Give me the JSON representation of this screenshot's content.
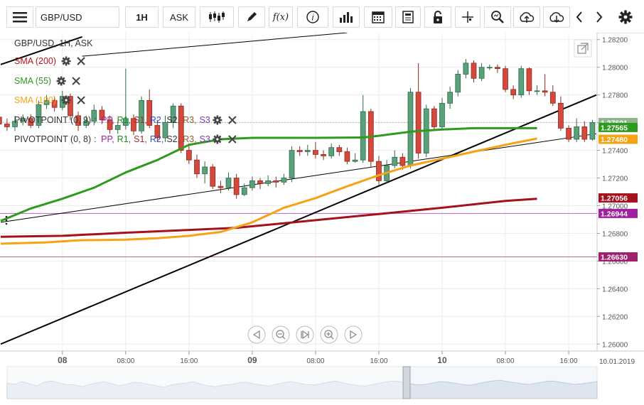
{
  "toolbar": {
    "menu_icon": "hamburger-icon",
    "symbol": "GBP/USD",
    "timeframe": "1H",
    "price_side": "ASK",
    "function_label": "f(x)",
    "info_label": "i"
  },
  "chart_data": {
    "type": "candlestick",
    "title": "GBP/USD, 1H, ASK",
    "symbol": "GBP/USD",
    "timeframe": "1H",
    "price_side": "ASK",
    "ylim": [
      1.2595,
      1.2825
    ],
    "y_ticks": [
      "1.28200",
      "1.28000",
      "1.27800",
      "1.27600",
      "1.27400",
      "1.27200",
      "1.27000",
      "1.26800",
      "1.26600",
      "1.26400",
      "1.26200",
      "1.26000"
    ],
    "x_ticks": [
      {
        "t": 8,
        "label": "08",
        "bold": true
      },
      {
        "t": 16,
        "label": "08:00",
        "bold": false
      },
      {
        "t": 24,
        "label": "16:00",
        "bold": false
      },
      {
        "t": 32,
        "label": "09",
        "bold": true
      },
      {
        "t": 40,
        "label": "08:00",
        "bold": false
      },
      {
        "t": 48,
        "label": "16:00",
        "bold": false
      },
      {
        "t": 56,
        "label": "10",
        "bold": true
      },
      {
        "t": 64,
        "label": "08:00",
        "bold": false
      },
      {
        "t": 72,
        "label": "16:00",
        "bold": false
      }
    ],
    "x_range": [
      0.2,
      75.5
    ],
    "date_label": "10.01.2019",
    "indicator_labels": [
      {
        "text": "SMA (200)",
        "color": "#b3151f"
      },
      {
        "text": "SMA (55)",
        "color": "#2e9a1e"
      },
      {
        "text": "SMA (100)",
        "color": "#f5a314"
      }
    ],
    "pivot_rows": [
      {
        "name": "PIVOTPOINT (0, 9)",
        "levels": [
          "PP",
          "R1",
          "S1",
          "R2",
          "S2",
          "R3",
          "S3"
        ]
      },
      {
        "name": "PIVOTPOINT (0, 8)",
        "levels": [
          "PP",
          "R1",
          "S1",
          "R2",
          "S2",
          "R3",
          "S3"
        ]
      }
    ],
    "pivot_colors": {
      "PP": "#a020a0",
      "R1": "#1e8c1e",
      "S1": "#a52a2a",
      "R2": "#3050c0",
      "S2": "#333333",
      "R3": "#8b5a2b",
      "S3": "#7a3ab0"
    },
    "series": [
      {
        "name": "SMA (200)",
        "color": "#a5111c",
        "width": 3,
        "points": [
          [
            0.2,
            1.26775
          ],
          [
            8,
            1.26782
          ],
          [
            16,
            1.26805
          ],
          [
            24,
            1.26825
          ],
          [
            30,
            1.2684
          ],
          [
            40,
            1.26895
          ],
          [
            48,
            1.2694
          ],
          [
            56,
            1.26985
          ],
          [
            64,
            1.27035
          ],
          [
            68,
            1.2705
          ]
        ]
      },
      {
        "name": "SMA (55)",
        "color": "#2e9a1e",
        "width": 3,
        "points": [
          [
            0.2,
            1.2689
          ],
          [
            4,
            1.2698
          ],
          [
            8,
            1.2705
          ],
          [
            12,
            1.2713
          ],
          [
            16,
            1.2724
          ],
          [
            20,
            1.2733
          ],
          [
            24,
            1.2744
          ],
          [
            28,
            1.2748
          ],
          [
            32,
            1.2749
          ],
          [
            40,
            1.2749
          ],
          [
            46,
            1.27493
          ],
          [
            48,
            1.27505
          ],
          [
            52,
            1.27535
          ],
          [
            56,
            1.2755
          ],
          [
            60,
            1.2756
          ],
          [
            64,
            1.2756
          ],
          [
            68,
            1.2756
          ]
        ]
      },
      {
        "name": "SMA (100)",
        "color": "#f5a314",
        "width": 3,
        "points": [
          [
            0.2,
            1.26725
          ],
          [
            6,
            1.26735
          ],
          [
            10,
            1.2675
          ],
          [
            16,
            1.26755
          ],
          [
            20,
            1.26765
          ],
          [
            24,
            1.26782
          ],
          [
            28,
            1.2681
          ],
          [
            32,
            1.2688
          ],
          [
            36,
            1.26985
          ],
          [
            40,
            1.27055
          ],
          [
            44,
            1.2714
          ],
          [
            48,
            1.2722
          ],
          [
            52,
            1.2729
          ],
          [
            56,
            1.2734
          ],
          [
            60,
            1.2739
          ],
          [
            64,
            1.2744
          ],
          [
            68,
            1.27485
          ]
        ]
      }
    ],
    "trend_lines": [
      {
        "color": "#000000",
        "width": 2,
        "points": [
          [
            0.2,
            1.26
          ],
          [
            75.5,
            1.278
          ]
        ]
      },
      {
        "color": "#000000",
        "width": 1,
        "points": [
          [
            0.2,
            1.2688
          ],
          [
            75.5,
            1.2752
          ]
        ]
      },
      {
        "color": "#000000",
        "width": 2,
        "points": [
          [
            0.2,
            1.2802
          ],
          [
            10.5,
            1.2822
          ]
        ]
      },
      {
        "color": "#000000",
        "width": 1,
        "points": [
          [
            10.5,
            1.2808
          ],
          [
            44,
            1.2825
          ]
        ]
      }
    ],
    "horizontal_levels": [
      {
        "value": 1.26944,
        "color": "#c060d0"
      },
      {
        "value": 1.2663,
        "color": "#c060a0"
      },
      {
        "value": 1.27601,
        "color": "#b8b8b8",
        "dashed": true
      }
    ],
    "price_badges": [
      {
        "value": 1.27601,
        "label": "1.27601",
        "color": "#8fb58f"
      },
      {
        "value": 1.27565,
        "label": "1.27565",
        "color": "#2e9a1e"
      },
      {
        "value": 1.2748,
        "label": "1.27480",
        "color": "#f5a314"
      },
      {
        "value": 1.27056,
        "label": "1.27056",
        "color": "#a5111c"
      },
      {
        "value": 1.26944,
        "label": "1.26944",
        "color": "#a020a0"
      },
      {
        "value": 1.2663,
        "label": "1.26630",
        "color": "#a0206e"
      }
    ],
    "candles": [
      [
        0,
        1.2764,
        1.2759,
        1.2767,
        1.2755
      ],
      [
        1,
        1.2759,
        1.2757,
        1.2763,
        1.2754
      ],
      [
        2,
        1.2757,
        1.2761,
        1.2765,
        1.2754
      ],
      [
        3,
        1.2761,
        1.2763,
        1.2766,
        1.2758
      ],
      [
        4,
        1.2763,
        1.2758,
        1.2766,
        1.2756
      ],
      [
        5,
        1.2758,
        1.2773,
        1.2776,
        1.2756
      ],
      [
        6,
        1.2773,
        1.2776,
        1.278,
        1.277
      ],
      [
        7,
        1.2776,
        1.2771,
        1.2779,
        1.2768
      ],
      [
        8,
        1.2771,
        1.2779,
        1.2783,
        1.2769
      ],
      [
        9,
        1.2779,
        1.2765,
        1.2781,
        1.2762
      ],
      [
        10,
        1.2765,
        1.2758,
        1.2768,
        1.2754
      ],
      [
        11,
        1.2758,
        1.2761,
        1.2765,
        1.2756
      ],
      [
        12,
        1.2761,
        1.2769,
        1.2773,
        1.2758
      ],
      [
        13,
        1.2769,
        1.2762,
        1.2772,
        1.2759
      ],
      [
        14,
        1.2762,
        1.2755,
        1.2765,
        1.2752
      ],
      [
        15,
        1.2755,
        1.2758,
        1.2761,
        1.2752
      ],
      [
        16,
        1.2758,
        1.2763,
        1.2799,
        1.2755
      ],
      [
        17,
        1.2763,
        1.2754,
        1.2766,
        1.2751
      ],
      [
        18,
        1.2754,
        1.2776,
        1.2779,
        1.2752
      ],
      [
        19,
        1.2776,
        1.2758,
        1.2784,
        1.2756
      ],
      [
        20,
        1.2758,
        1.2749,
        1.2762,
        1.2746
      ],
      [
        21,
        1.2749,
        1.276,
        1.2765,
        1.2746
      ],
      [
        22,
        1.276,
        1.2772,
        1.2774,
        1.2756
      ],
      [
        23,
        1.2772,
        1.274,
        1.2774,
        1.2738
      ],
      [
        24,
        1.274,
        1.2733,
        1.2745,
        1.273
      ],
      [
        25,
        1.2733,
        1.2723,
        1.2737,
        1.272
      ],
      [
        26,
        1.2723,
        1.2728,
        1.2732,
        1.2716
      ],
      [
        27,
        1.2728,
        1.2714,
        1.273,
        1.2712
      ],
      [
        28,
        1.2714,
        1.2713,
        1.2718,
        1.2709
      ],
      [
        29,
        1.2713,
        1.272,
        1.2724,
        1.2711
      ],
      [
        30,
        1.272,
        1.2708,
        1.2723,
        1.2705
      ],
      [
        31,
        1.2708,
        1.2713,
        1.2716,
        1.2707
      ],
      [
        32,
        1.2713,
        1.2718,
        1.2721,
        1.2711
      ],
      [
        33,
        1.2718,
        1.2716,
        1.272,
        1.2712
      ],
      [
        34,
        1.2716,
        1.2718,
        1.2722,
        1.2714
      ],
      [
        35,
        1.2718,
        1.2717,
        1.2721,
        1.2713
      ],
      [
        36,
        1.2717,
        1.272,
        1.2723,
        1.2715
      ],
      [
        37,
        1.272,
        1.274,
        1.2743,
        1.2717
      ],
      [
        38,
        1.274,
        1.2739,
        1.2743,
        1.2736
      ],
      [
        39,
        1.2739,
        1.274,
        1.2744,
        1.2736
      ],
      [
        40,
        1.274,
        1.2737,
        1.2746,
        1.2734
      ],
      [
        41,
        1.2737,
        1.2736,
        1.274,
        1.2733
      ],
      [
        42,
        1.2736,
        1.2742,
        1.2745,
        1.2734
      ],
      [
        43,
        1.2742,
        1.2739,
        1.2744,
        1.2736
      ],
      [
        44,
        1.2739,
        1.2732,
        1.2742,
        1.273
      ],
      [
        45,
        1.2732,
        1.2733,
        1.2738,
        1.2731
      ],
      [
        46,
        1.2733,
        1.2768,
        1.278,
        1.2731
      ],
      [
        47,
        1.2768,
        1.2732,
        1.277,
        1.2728
      ],
      [
        48,
        1.2732,
        1.2718,
        1.2736,
        1.2715
      ],
      [
        49,
        1.2718,
        1.2729,
        1.2733,
        1.2716
      ],
      [
        50,
        1.2729,
        1.2735,
        1.274,
        1.2727
      ],
      [
        51,
        1.2735,
        1.2729,
        1.2738,
        1.2726
      ],
      [
        52,
        1.2729,
        1.2782,
        1.2785,
        1.2727
      ],
      [
        53,
        1.2782,
        1.2738,
        1.2803,
        1.2734
      ],
      [
        54,
        1.2738,
        1.277,
        1.2773,
        1.2735
      ],
      [
        55,
        1.277,
        1.2757,
        1.2772,
        1.2754
      ],
      [
        56,
        1.2757,
        1.2774,
        1.2778,
        1.2755
      ],
      [
        57,
        1.2774,
        1.2782,
        1.2786,
        1.277
      ],
      [
        58,
        1.2782,
        1.2795,
        1.2798,
        1.2779
      ],
      [
        59,
        1.2795,
        1.2803,
        1.2806,
        1.2792
      ],
      [
        60,
        1.2803,
        1.2792,
        1.2805,
        1.2789
      ],
      [
        61,
        1.2792,
        1.28,
        1.2803,
        1.279
      ],
      [
        62,
        1.28,
        1.28,
        1.2802,
        1.2798
      ],
      [
        63,
        1.28,
        1.2799,
        1.2802,
        1.2796
      ],
      [
        64,
        1.2799,
        1.2784,
        1.2801,
        1.2782
      ],
      [
        65,
        1.2784,
        1.278,
        1.2787,
        1.2777
      ],
      [
        66,
        1.278,
        1.2799,
        1.2801,
        1.2778
      ],
      [
        67,
        1.2799,
        1.2783,
        1.28,
        1.278
      ],
      [
        68,
        1.2783,
        1.2783,
        1.2787,
        1.278
      ],
      [
        69,
        1.2783,
        1.2782,
        1.2795,
        1.2779
      ],
      [
        70,
        1.2782,
        1.2774,
        1.2787,
        1.2772
      ],
      [
        71,
        1.2774,
        1.2756,
        1.2779,
        1.2754
      ],
      [
        72,
        1.2756,
        1.2748,
        1.2758,
        1.2746
      ],
      [
        73,
        1.2748,
        1.2757,
        1.2763,
        1.2746
      ],
      [
        74,
        1.2757,
        1.2748,
        1.2761,
        1.2746
      ],
      [
        75,
        1.2748,
        1.27601,
        1.2762,
        1.2747
      ]
    ],
    "navigator_values": [
      0.55,
      0.5,
      0.6,
      0.52,
      0.45,
      0.58,
      0.62,
      0.55,
      0.5,
      0.48,
      0.42,
      0.5,
      0.55,
      0.6,
      0.52,
      0.46,
      0.5,
      0.58,
      0.55,
      0.5,
      0.45,
      0.4,
      0.48,
      0.52,
      0.55,
      0.6,
      0.5,
      0.45,
      0.42,
      0.48,
      0.5,
      0.55,
      0.58,
      0.52,
      0.48,
      0.44,
      0.5,
      0.56,
      0.6,
      0.55,
      0.5,
      0.48,
      0.52,
      0.58,
      0.62,
      0.55,
      0.5,
      0.46,
      0.44,
      0.5,
      0.55,
      0.6,
      0.62,
      0.58,
      0.52,
      0.48,
      0.5,
      0.55,
      0.6,
      0.58,
      0.54,
      0.5,
      0.47,
      0.52,
      0.58,
      0.62,
      0.65,
      0.6,
      0.56,
      0.52,
      0.5,
      0.55,
      0.6,
      0.62,
      0.58,
      0.54,
      0.5,
      0.52,
      0.56,
      0.6
    ]
  }
}
